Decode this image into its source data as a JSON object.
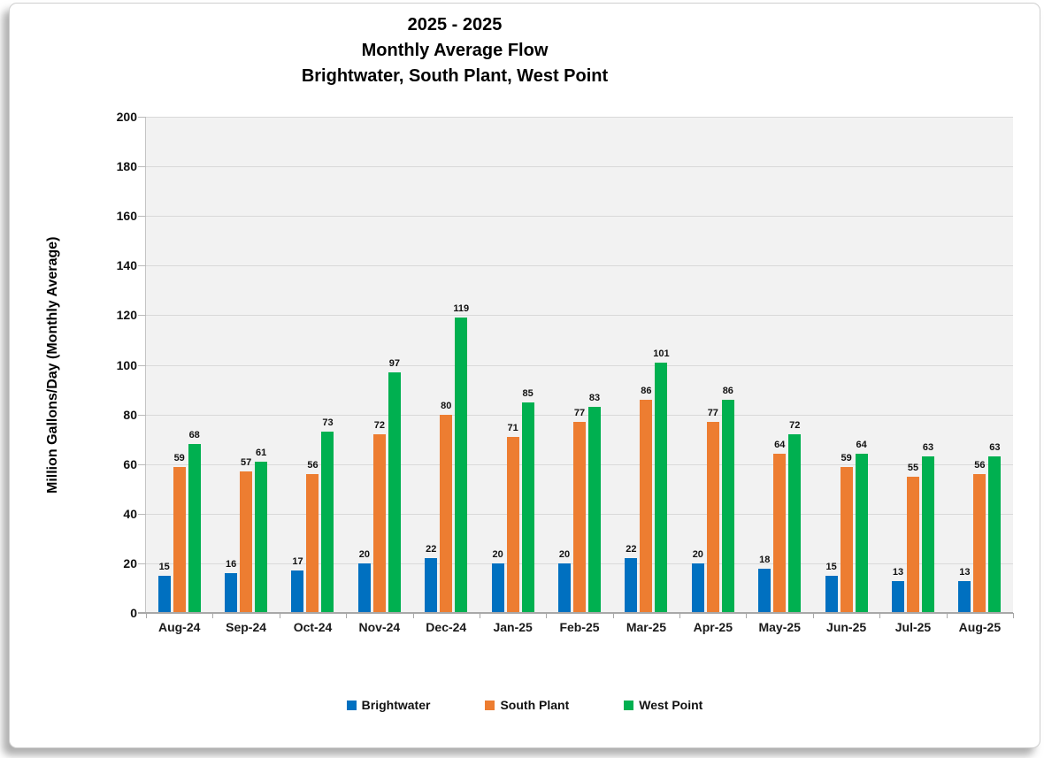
{
  "title": {
    "line1": "2025 - 2025",
    "line2": "Monthly Average Flow",
    "line3": "Brightwater, South Plant, West Point"
  },
  "chart_data": {
    "type": "bar",
    "title": "2025 - 2025 Monthly Average Flow — Brightwater, South Plant, West Point",
    "xlabel": "",
    "ylabel": "Million Gallons/Day (Monthly Average)",
    "ylim": [
      0,
      200
    ],
    "yticks": [
      0,
      20,
      40,
      60,
      80,
      100,
      120,
      140,
      160,
      180,
      200
    ],
    "grid": true,
    "legend_position": "bottom",
    "plot_background": "#f2f2f2",
    "categories": [
      "Aug-24",
      "Sep-24",
      "Oct-24",
      "Nov-24",
      "Dec-24",
      "Jan-25",
      "Feb-25",
      "Mar-25",
      "Apr-25",
      "May-25",
      "Jun-25",
      "Jul-25",
      "Aug-25"
    ],
    "series": [
      {
        "name": "Brightwater",
        "color": "#0070C0",
        "values": [
          15,
          16,
          17,
          20,
          22,
          20,
          20,
          22,
          20,
          18,
          15,
          13,
          13
        ]
      },
      {
        "name": "South Plant",
        "color": "#ED7D31",
        "values": [
          59,
          57,
          56,
          72,
          80,
          71,
          77,
          86,
          77,
          64,
          59,
          55,
          56
        ]
      },
      {
        "name": "West Point",
        "color": "#00B050",
        "values": [
          68,
          61,
          73,
          97,
          119,
          85,
          83,
          101,
          86,
          72,
          64,
          63,
          63
        ]
      }
    ]
  }
}
